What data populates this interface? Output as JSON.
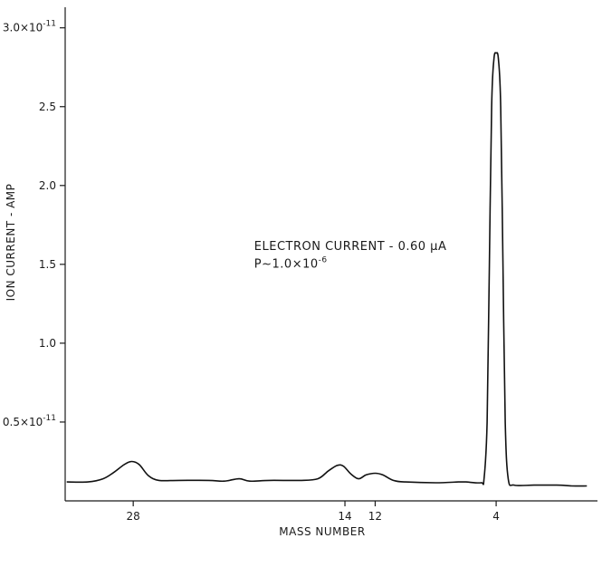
{
  "chart_data": {
    "type": "line",
    "title": "",
    "xlabel": "MASS NUMBER",
    "ylabel": "ION CURRENT - AMP",
    "x_direction": "decreasing",
    "xlim": [
      32.5,
      -2.7
    ],
    "ylim": [
      0,
      3.05
    ],
    "y_unit_exponent": "10^-11",
    "x_ticks": [
      {
        "value": 28,
        "label": "28"
      },
      {
        "value": 14,
        "label": "14"
      },
      {
        "value": 12,
        "label": "12"
      },
      {
        "value": 4,
        "label": "4"
      }
    ],
    "y_ticks": [
      {
        "value": 0.5,
        "label": "0.5×10",
        "sup": "-11"
      },
      {
        "value": 1.0,
        "label": "1.0",
        "sup": ""
      },
      {
        "value": 1.5,
        "label": "1.5",
        "sup": ""
      },
      {
        "value": 2.0,
        "label": "2.0",
        "sup": ""
      },
      {
        "value": 2.5,
        "label": "2.5",
        "sup": ""
      },
      {
        "value": 3.0,
        "label": "3.0×10",
        "sup": "-11"
      }
    ],
    "annotations": [
      {
        "text": "ELECTRON CURRENT - 0.60 μA",
        "sup": "",
        "x": 20.0,
        "y": 1.59
      },
      {
        "text": "P~1.0×10",
        "sup": "-6",
        "x": 20.0,
        "y": 1.48
      }
    ],
    "grid": false,
    "legend": "none",
    "series": [
      {
        "color": "#111111",
        "points": [
          [
            32.4,
            0.12
          ],
          [
            31.0,
            0.12
          ],
          [
            30.0,
            0.14
          ],
          [
            29.3,
            0.18
          ],
          [
            28.6,
            0.23
          ],
          [
            28.1,
            0.25
          ],
          [
            27.6,
            0.23
          ],
          [
            27.0,
            0.16
          ],
          [
            26.3,
            0.13
          ],
          [
            25.0,
            0.13
          ],
          [
            23.0,
            0.13
          ],
          [
            22.0,
            0.125
          ],
          [
            21.0,
            0.14
          ],
          [
            20.3,
            0.125
          ],
          [
            19.0,
            0.13
          ],
          [
            17.0,
            0.13
          ],
          [
            15.8,
            0.14
          ],
          [
            15.1,
            0.19
          ],
          [
            14.5,
            0.225
          ],
          [
            14.1,
            0.22
          ],
          [
            13.6,
            0.17
          ],
          [
            13.1,
            0.14
          ],
          [
            12.6,
            0.165
          ],
          [
            12.0,
            0.175
          ],
          [
            11.5,
            0.165
          ],
          [
            10.8,
            0.13
          ],
          [
            10.0,
            0.12
          ],
          [
            8.0,
            0.115
          ],
          [
            6.5,
            0.12
          ],
          [
            6.0,
            0.12
          ],
          [
            5.0,
            0.115
          ],
          [
            4.8,
            0.14
          ],
          [
            4.6,
            0.5
          ],
          [
            4.45,
            1.5
          ],
          [
            4.3,
            2.5
          ],
          [
            4.15,
            2.8
          ],
          [
            4.0,
            2.84
          ],
          [
            3.85,
            2.8
          ],
          [
            3.7,
            2.5
          ],
          [
            3.55,
            1.5
          ],
          [
            3.4,
            0.5
          ],
          [
            3.2,
            0.14
          ],
          [
            2.8,
            0.1
          ],
          [
            1.5,
            0.1
          ],
          [
            0.0,
            0.1
          ],
          [
            -1.0,
            0.095
          ],
          [
            -2.0,
            0.095
          ]
        ]
      }
    ]
  }
}
